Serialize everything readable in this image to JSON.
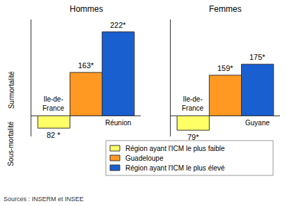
{
  "chart_data": [
    {
      "type": "bar",
      "title": "Hommes",
      "categories": [
        "Ile-de-France",
        null,
        "Réunion"
      ],
      "series": [
        {
          "name": "Région ayant l'ICM le plus faible",
          "color": "#ffff66",
          "values": [
            82,
            null,
            null
          ],
          "value_labels": [
            "82 *",
            null,
            null
          ]
        },
        {
          "name": "Guadeloupe",
          "color": "#ff9922",
          "values": [
            null,
            163,
            null
          ],
          "value_labels": [
            null,
            "163*",
            null
          ]
        },
        {
          "name": "Région ayant l'ICM le plus élevé",
          "color": "#1a5fd0",
          "values": [
            null,
            null,
            222
          ],
          "value_labels": [
            null,
            null,
            "222*"
          ]
        }
      ],
      "ylim": [
        70,
        240
      ],
      "yticks": [
        100
      ],
      "grid": true,
      "tick_labels": false,
      "data_labels": true,
      "legend": "bottom"
    },
    {
      "type": "bar",
      "title": "Femmes",
      "categories": [
        "Ile-de-France",
        null,
        "Guyane"
      ],
      "series": [
        {
          "name": "Région ayant l'ICM le plus faible",
          "color": "#ffff66",
          "values": [
            79,
            null,
            null
          ],
          "value_labels": [
            "79*",
            null,
            null
          ]
        },
        {
          "name": "Guadeloupe",
          "color": "#ff9922",
          "values": [
            null,
            159,
            null
          ],
          "value_labels": [
            null,
            "159*",
            null
          ]
        },
        {
          "name": "Région ayant l'ICM le plus élevé",
          "color": "#1a5fd0",
          "values": [
            null,
            null,
            175
          ],
          "value_labels": [
            null,
            null,
            "175*"
          ]
        }
      ],
      "ylim": [
        70,
        240
      ],
      "yticks": [
        100
      ],
      "grid": true,
      "tick_labels": false,
      "data_labels": true
    }
  ],
  "annotations": {
    "above": "Surmortalité",
    "below": "Sous-mortalité"
  },
  "source": "Sources : INSERM et INSEE"
}
